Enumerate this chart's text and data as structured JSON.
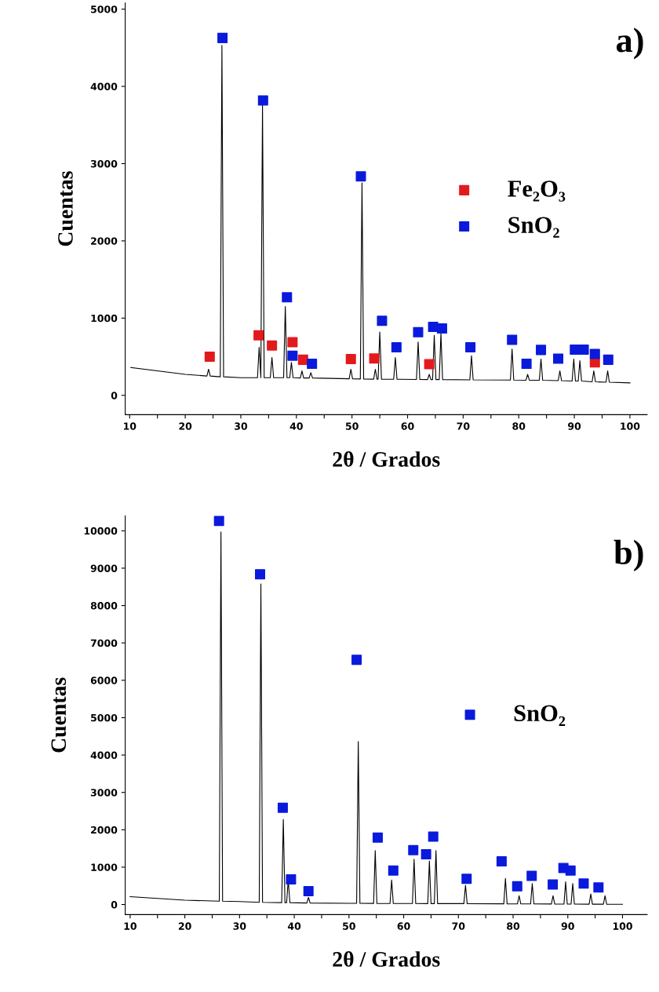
{
  "chart_data": [
    {
      "type": "line",
      "xlabel": "2θ / Grados",
      "ylabel": "Cuentas",
      "annotations": [
        "a)"
      ],
      "xlim": [
        9.2,
        103.1
      ],
      "ylim": [
        -250,
        5080
      ],
      "xticks": [
        {
          "value": 10,
          "label": "10"
        },
        {
          "value": 15,
          "label": null
        },
        {
          "value": 20,
          "label": "20"
        },
        {
          "value": 25,
          "label": null
        },
        {
          "value": 30,
          "label": "30"
        },
        {
          "value": 35,
          "label": null
        },
        {
          "value": 40,
          "label": "40"
        },
        {
          "value": 45,
          "label": null
        },
        {
          "value": 50,
          "label": "50"
        },
        {
          "value": 55,
          "label": null
        },
        {
          "value": 60,
          "label": "60"
        },
        {
          "value": 65,
          "label": null
        },
        {
          "value": 70,
          "label": "70"
        },
        {
          "value": 75,
          "label": null
        },
        {
          "value": 80,
          "label": "80"
        },
        {
          "value": 85,
          "label": null
        },
        {
          "value": 90,
          "label": "90"
        },
        {
          "value": 95,
          "label": null
        },
        {
          "value": 100,
          "label": "100"
        }
      ],
      "yticks": [
        0,
        1000,
        2000,
        3000,
        4000,
        5000
      ],
      "grid": false,
      "legend": "center right",
      "series": [
        {
          "color": "#000000",
          "marker": "none",
          "x": [
            10.2,
            20,
            23.9,
            24.2,
            24.5,
            26.3,
            26.6,
            26.9,
            30,
            33.0,
            33.3,
            33.6,
            33.9,
            34.2,
            35.3,
            35.6,
            35.9,
            37.7,
            38.0,
            38.3,
            38.8,
            39.1,
            39.4,
            40.7,
            41.0,
            41.3,
            42.3,
            42.6,
            42.9,
            49.5,
            49.8,
            50.1,
            51.5,
            51.8,
            52.1,
            53.9,
            54.2,
            54.5,
            54.7,
            55.0,
            55.3,
            57.5,
            57.8,
            58.1,
            61.6,
            61.9,
            62.2,
            63.6,
            63.9,
            64.2,
            64.5,
            64.8,
            65.1,
            65.7,
            66.0,
            66.3,
            71.2,
            71.5,
            71.8,
            78.5,
            78.8,
            79.1,
            81.3,
            81.6,
            81.9,
            83.7,
            84.0,
            84.3,
            87.1,
            87.4,
            87.7,
            89.6,
            89.9,
            90.2,
            90.7,
            91.0,
            91.3,
            93.2,
            93.5,
            93.8,
            95.7,
            96.0,
            96.3,
            100
          ],
          "values": [
            360,
            272,
            250,
            338,
            250,
            240,
            4530,
            240,
            228,
            228,
            623,
            228,
            3760,
            228,
            228,
            490,
            228,
            228,
            1150,
            228,
            228,
            425,
            228,
            225,
            316,
            225,
            225,
            294,
            225,
            215,
            338,
            215,
            212,
            2750,
            212,
            210,
            338,
            210,
            210,
            820,
            210,
            208,
            490,
            208,
            206,
            690,
            206,
            205,
            272,
            205,
            205,
            777,
            205,
            205,
            800,
            205,
            200,
            513,
            200,
            198,
            600,
            198,
            196,
            272,
            196,
            195,
            470,
            195,
            190,
            316,
            190,
            185,
            470,
            185,
            185,
            448,
            185,
            175,
            316,
            175,
            170,
            316,
            170,
            162
          ]
        },
        {
          "type": "scatter",
          "name": "Fe₂O₃",
          "color": "#e31a1c",
          "marker": "square",
          "x": [
            24.4,
            33.2,
            35.6,
            39.3,
            41.2,
            49.8,
            54.0,
            63.9,
            93.7
          ],
          "values": [
            500,
            777,
            645,
            689,
            461,
            470,
            478,
            404,
            426
          ]
        },
        {
          "type": "scatter",
          "name": "SnO₂",
          "color": "#0a1adc",
          "marker": "square",
          "x": [
            26.7,
            34.0,
            38.3,
            39.3,
            42.8,
            51.6,
            55.4,
            58.0,
            61.9,
            64.6,
            66.2,
            71.3,
            78.8,
            81.4,
            84.0,
            87.1,
            90.1,
            91.7,
            93.7,
            96.1
          ],
          "values": [
            4627,
            3819,
            1269,
            514,
            408,
            2836,
            966,
            623,
            817,
            887,
            865,
            623,
            720,
            408,
            588,
            474,
            593,
            593,
            536,
            461
          ]
        }
      ]
    },
    {
      "type": "line",
      "xlabel": "2θ / Grados",
      "ylabel": "Cuentas",
      "annotations": [
        "b)"
      ],
      "xlim": [
        9.1,
        104.5
      ],
      "ylim": [
        -270,
        10400
      ],
      "xticks": [
        {
          "value": 10,
          "label": "10"
        },
        {
          "value": 15,
          "label": null
        },
        {
          "value": 20,
          "label": "20"
        },
        {
          "value": 25,
          "label": null
        },
        {
          "value": 30,
          "label": "30"
        },
        {
          "value": 35,
          "label": null
        },
        {
          "value": 40,
          "label": "40"
        },
        {
          "value": 45,
          "label": null
        },
        {
          "value": 50,
          "label": "50"
        },
        {
          "value": 55,
          "label": null
        },
        {
          "value": 60,
          "label": "60"
        },
        {
          "value": 65,
          "label": null
        },
        {
          "value": 70,
          "label": "70"
        },
        {
          "value": 75,
          "label": null
        },
        {
          "value": 80,
          "label": "80"
        },
        {
          "value": 85,
          "label": null
        },
        {
          "value": 90,
          "label": "90"
        },
        {
          "value": 95,
          "label": null
        },
        {
          "value": 100,
          "label": "100"
        }
      ],
      "yticks": [
        0,
        1000,
        2000,
        3000,
        4000,
        5000,
        6000,
        7000,
        8000,
        9000,
        10000
      ],
      "grid": false,
      "legend": "center right",
      "series": [
        {
          "color": "#000000",
          "marker": "none",
          "x": [
            10,
            20,
            26.3,
            26.6,
            26.9,
            30,
            33.6,
            33.9,
            34.2,
            37.7,
            38.0,
            38.3,
            38.6,
            38.9,
            39.2,
            42.3,
            42.6,
            42.9,
            50,
            51.4,
            51.7,
            52.0,
            54.5,
            54.8,
            55.1,
            57.5,
            57.8,
            58.1,
            61.6,
            61.9,
            62.2,
            64.4,
            64.7,
            65.0,
            65.6,
            65.9,
            66.2,
            70,
            71.0,
            71.3,
            71.6,
            78.3,
            78.6,
            78.9,
            80.8,
            81.1,
            81.4,
            83.2,
            83.5,
            83.8,
            87.0,
            87.3,
            87.6,
            89.3,
            89.6,
            89.9,
            90.6,
            90.9,
            91.2,
            93.9,
            94.2,
            94.5,
            96.5,
            96.8,
            97.1,
            100
          ],
          "values": [
            209,
            116,
            90,
            9970,
            90,
            80,
            60,
            8578,
            60,
            50,
            2277,
            50,
            50,
            654,
            50,
            40,
            190,
            40,
            33,
            33,
            4361,
            33,
            30,
            1442,
            30,
            28,
            654,
            28,
            26,
            1210,
            26,
            25,
            1164,
            25,
            25,
            1442,
            25,
            24,
            24,
            515,
            24,
            20,
            700,
            20,
            18,
            237,
            18,
            16,
            561,
            16,
            14,
            237,
            14,
            12,
            608,
            12,
            12,
            561,
            12,
            10,
            283,
            10,
            8,
            237,
            8,
            6
          ]
        },
        {
          "type": "scatter",
          "name": "SnO₂",
          "color": "#0a1adc",
          "marker": "square",
          "x": [
            26.25,
            33.75,
            37.9,
            39.4,
            42.6,
            51.4,
            55.25,
            58.1,
            61.75,
            64.1,
            65.4,
            71.5,
            77.9,
            80.75,
            83.4,
            87.25,
            89.2,
            90.5,
            92.9,
            95.6
          ],
          "values": [
            10266,
            8838,
            2590,
            673,
            358,
            6549,
            1791,
            910,
            1457,
            1346,
            1819,
            690,
            1154,
            487,
            765,
            534,
            978,
            910,
            561,
            459
          ]
        }
      ]
    }
  ]
}
